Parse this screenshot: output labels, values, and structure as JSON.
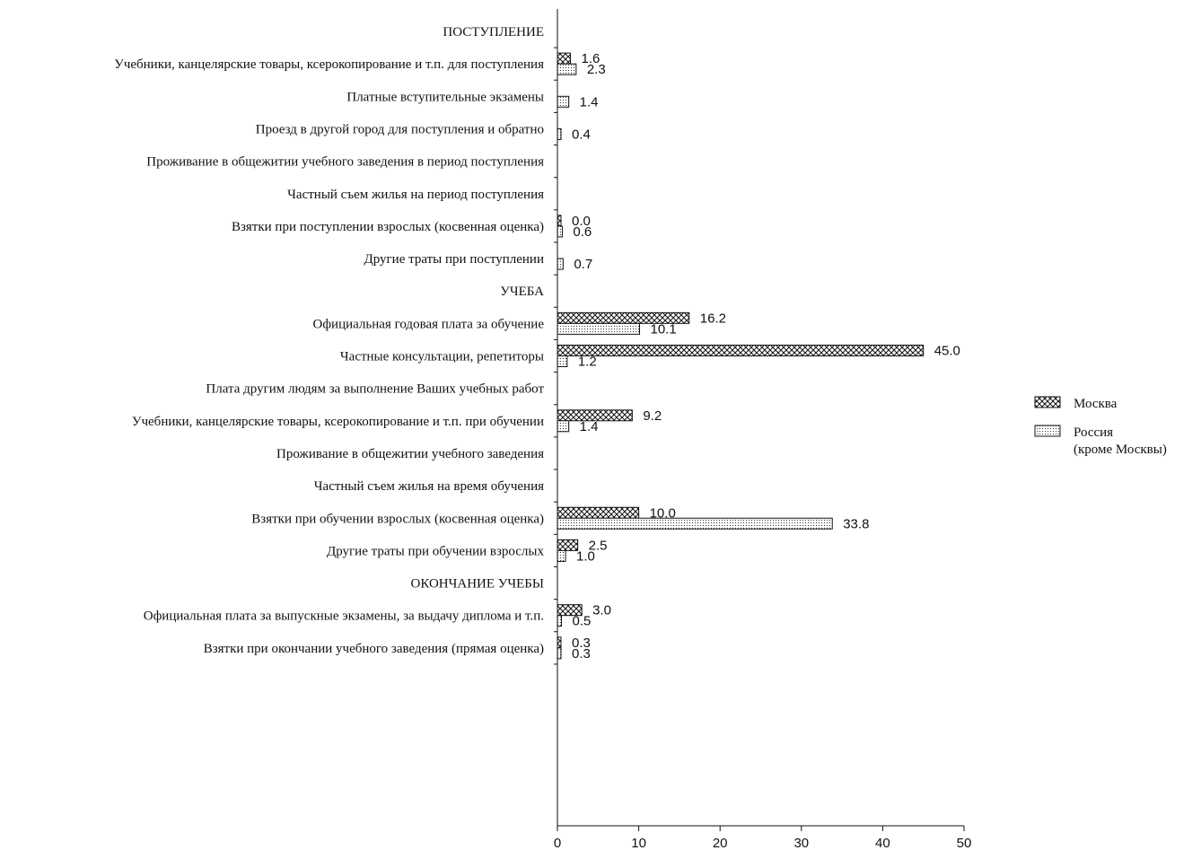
{
  "chart_data": {
    "type": "bar",
    "orientation": "horizontal",
    "categories": [
      "ПОСТУПЛЕНИЕ",
      "Учебники, канцелярские товары, ксерокопирование и т.п. для поступления",
      "Платные вступительные экзамены",
      "Проезд в другой город для поступления и обратно",
      "Проживание в общежитии учебного заведения в период поступления",
      "Частный съем жилья на период поступления",
      "Взятки при поступлении взрослых (косвенная оценка)",
      "Другие траты при поступлении",
      "УЧЕБА",
      "Официальная годовая плата за обучение",
      "Частные консультации, репетиторы",
      "Плата другим людям за выполнение Ваших учебных работ",
      "Учебники, канцелярские товары, ксерокопирование и т.п. при обучении",
      "Проживание в общежитии учебного заведения",
      "Частный съем жилья на время обучения",
      "Взятки при обучении взрослых (косвенная оценка)",
      "Другие траты при обучении взрослых",
      "ОКОНЧАНИЕ УЧЕБЫ",
      "Официальная плата за выпускные экзамены, за выдачу диплома и т.п.",
      "Взятки при окончании учебного заведения (прямая оценка)"
    ],
    "series": [
      {
        "name": "Москва",
        "pattern": "crosshatch",
        "values": [
          null,
          1.6,
          null,
          null,
          null,
          null,
          0.0,
          null,
          null,
          16.2,
          45.0,
          null,
          9.2,
          null,
          null,
          10.0,
          2.5,
          null,
          3.0,
          0.3
        ],
        "labels": [
          "",
          "1.6",
          "",
          "",
          "",
          "",
          "0.0",
          "",
          "",
          "16.2",
          "45.0",
          "",
          "9.2",
          "",
          "",
          "10.0",
          "2.5",
          "",
          "3.0",
          "0.3"
        ]
      },
      {
        "name": "Россия (кроме Москвы)",
        "name_lines": [
          "Россия",
          "(кроме Москвы)"
        ],
        "pattern": "dots",
        "values": [
          null,
          2.3,
          1.4,
          0.4,
          null,
          null,
          0.6,
          0.7,
          null,
          10.1,
          1.2,
          null,
          1.4,
          null,
          null,
          33.8,
          1.0,
          null,
          0.5,
          0.3
        ],
        "labels": [
          "",
          "2.3",
          "1.4",
          "0.4",
          "",
          "",
          "0.6",
          "0.7",
          "",
          "10.1",
          "1.2",
          "",
          "1.4",
          "",
          "",
          "33.8",
          "1.0",
          "",
          "0.5",
          "0.3"
        ]
      }
    ],
    "xlim": [
      0,
      50
    ],
    "xticks": [
      "0",
      "10",
      "20",
      "30",
      "40",
      "50"
    ],
    "title": "",
    "xlabel": "",
    "ylabel": "",
    "legend_position": "right",
    "grid": false,
    "colors": {
      "ink": "#111111",
      "background": "#ffffff"
    }
  }
}
